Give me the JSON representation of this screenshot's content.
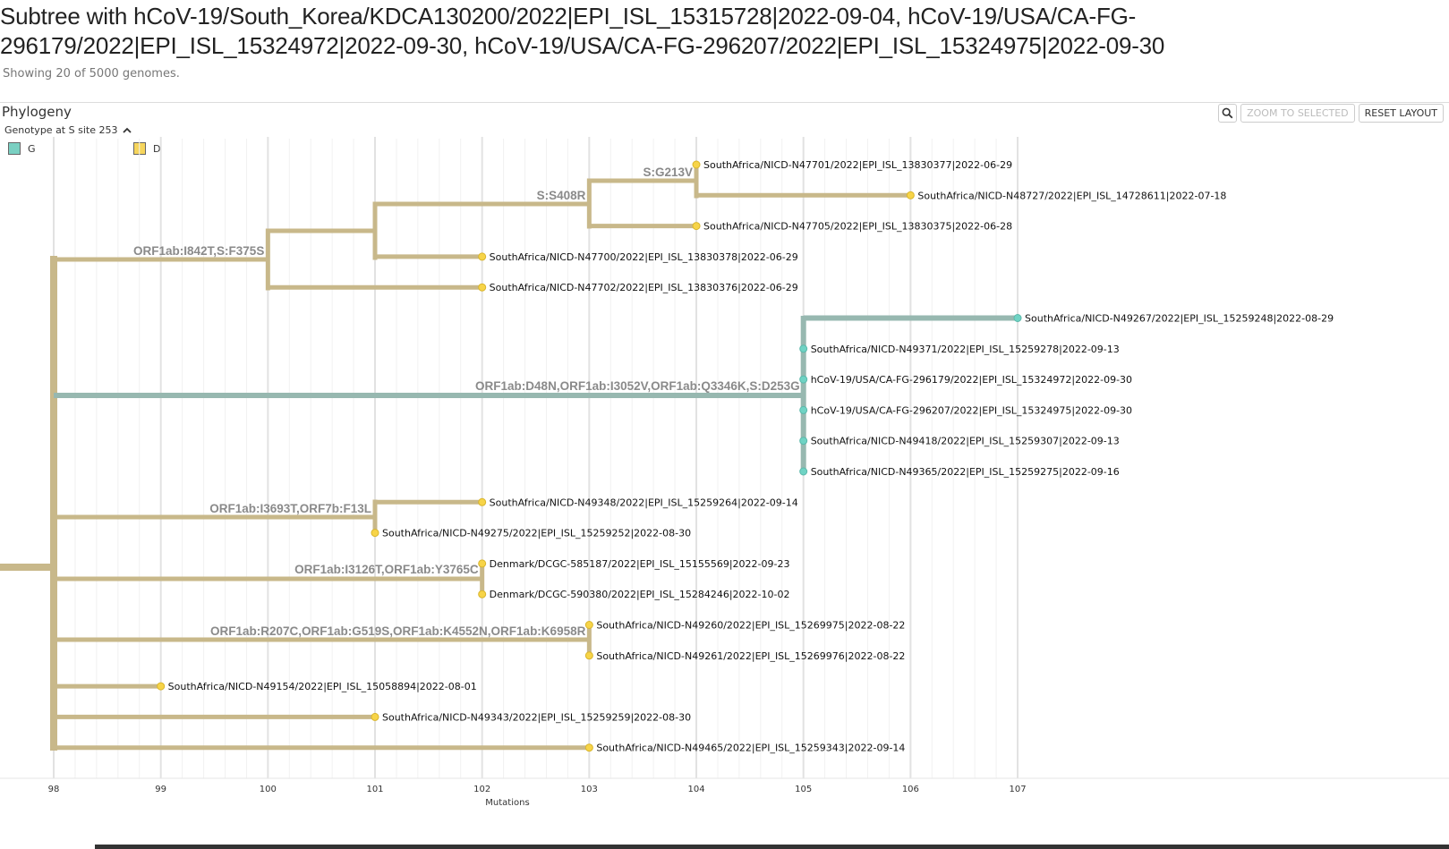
{
  "page": {
    "title": "Subtree with hCoV-19/South_Korea/KDCA130200/2022|EPI_ISL_15315728|2022-09-04, hCoV-19/USA/CA-FG-296179/2022|EPI_ISL_15324972|2022-09-30, hCoV-19/USA/CA-FG-296207/2022|EPI_ISL_15324975|2022-09-30",
    "subtitle": "Showing 20 of 5000 genomes."
  },
  "panel": {
    "title": "Phylogeny",
    "zoom_label": "ZOOM TO SELECTED",
    "reset_label": "RESET LAYOUT",
    "zoom_icon": "magnifier-icon"
  },
  "legend": {
    "title": "Genotype at S site 253",
    "items": [
      {
        "label": "G",
        "color": "#7ad0c2"
      },
      {
        "label": "D",
        "color": "#f6d55c"
      }
    ]
  },
  "colors": {
    "branch_d": "#c8b88a",
    "branch_g": "#97b8b0",
    "tip_d": "#f7d448",
    "tip_g": "#6fd3c4",
    "grid": "#e2e2e2"
  },
  "axis": {
    "label": "Mutations",
    "ticks": [
      "98",
      "99",
      "100",
      "101",
      "102",
      "103",
      "104",
      "105",
      "106",
      "107"
    ]
  },
  "tree": {
    "tips": [
      "SouthAfrica/NICD-N47701/2022|EPI_ISL_13830377|2022-06-29",
      "SouthAfrica/NICD-N48727/2022|EPI_ISL_14728611|2022-07-18",
      "SouthAfrica/NICD-N47705/2022|EPI_ISL_13830375|2022-06-28",
      "SouthAfrica/NICD-N47700/2022|EPI_ISL_13830378|2022-06-29",
      "SouthAfrica/NICD-N47702/2022|EPI_ISL_13830376|2022-06-29",
      "SouthAfrica/NICD-N49267/2022|EPI_ISL_15259248|2022-08-29",
      "SouthAfrica/NICD-N49371/2022|EPI_ISL_15259278|2022-09-13",
      "hCoV-19/USA/CA-FG-296179/2022|EPI_ISL_15324972|2022-09-30",
      "hCoV-19/USA/CA-FG-296207/2022|EPI_ISL_15324975|2022-09-30",
      "SouthAfrica/NICD-N49418/2022|EPI_ISL_15259307|2022-09-13",
      "SouthAfrica/NICD-N49365/2022|EPI_ISL_15259275|2022-09-16",
      "SouthAfrica/NICD-N49348/2022|EPI_ISL_15259264|2022-09-14",
      "SouthAfrica/NICD-N49275/2022|EPI_ISL_15259252|2022-08-30",
      "Denmark/DCGC-585187/2022|EPI_ISL_15155569|2022-09-23",
      "Denmark/DCGC-590380/2022|EPI_ISL_15284246|2022-10-02",
      "SouthAfrica/NICD-N49260/2022|EPI_ISL_15269975|2022-08-22",
      "SouthAfrica/NICD-N49261/2022|EPI_ISL_15269976|2022-08-22",
      "SouthAfrica/NICD-N49154/2022|EPI_ISL_15058894|2022-08-01",
      "SouthAfrica/NICD-N49343/2022|EPI_ISL_15259259|2022-08-30",
      "SouthAfrica/NICD-N49465/2022|EPI_ISL_15259343|2022-09-14"
    ],
    "tip_mutations": [
      104,
      106,
      104,
      102,
      102,
      107,
      105,
      105,
      105,
      105,
      105,
      102,
      101,
      102,
      102,
      103,
      103,
      99,
      101,
      103
    ],
    "tip_genotype": [
      "D",
      "D",
      "D",
      "D",
      "D",
      "G",
      "G",
      "G",
      "G",
      "G",
      "G",
      "D",
      "D",
      "D",
      "D",
      "D",
      "D",
      "D",
      "D",
      "D"
    ],
    "branch_labels": [
      "S:G213V",
      "S:S408R",
      "ORF1ab:I842T,S:F375S",
      "ORF1ab:D48N,ORF1ab:I3052V,ORF1ab:Q3346K,S:D253G",
      "ORF1ab:I3693T,ORF7b:F13L",
      "ORF1ab:I3126T,ORF1ab:Y3765C",
      "ORF1ab:R207C,ORF1ab:G519S,ORF1ab:K4552N,ORF1ab:K6958R"
    ]
  }
}
